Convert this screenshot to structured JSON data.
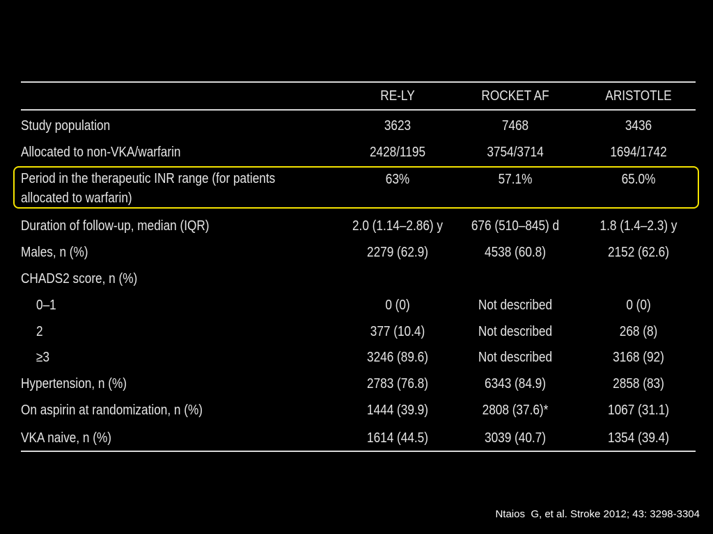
{
  "table": {
    "columns": [
      "RE-LY",
      "ROCKET AF",
      "ARISTOTLE"
    ],
    "rows": [
      {
        "label": "Study population",
        "values": [
          "3623",
          "7468",
          "3436"
        ]
      },
      {
        "label": "Allocated to non-VKA/warfarin",
        "values": [
          "2428/1195",
          "3754/3714",
          "1694/1742"
        ]
      },
      {
        "label": "Period in the therapeutic INR range (for patients allocated to warfarin)",
        "values": [
          "63%",
          "57.1%",
          "65.0%"
        ]
      },
      {
        "label": "Duration of follow-up, median (IQR)",
        "values": [
          "2.0 (1.14–2.86) y",
          "676 (510–845) d",
          "1.8 (1.4–2.3) y"
        ]
      },
      {
        "label": "Males, n (%)",
        "values": [
          "2279 (62.9)",
          "4538 (60.8)",
          "2152 (62.6)"
        ]
      },
      {
        "label": "CHADS2 score, n (%)",
        "values": [
          "",
          "",
          ""
        ]
      },
      {
        "label": "0–1",
        "values": [
          "0 (0)",
          "Not described",
          "0 (0)"
        ]
      },
      {
        "label": "2",
        "values": [
          "377 (10.4)",
          "Not described",
          "268 (8)"
        ]
      },
      {
        "label": "≥3",
        "values": [
          "3246 (89.6)",
          "Not described",
          "3168 (92)"
        ]
      },
      {
        "label": "Hypertension, n (%)",
        "values": [
          "2783 (76.8)",
          "6343 (84.9)",
          "2858 (83)"
        ]
      },
      {
        "label": "On aspirin at randomization, n (%)",
        "values": [
          "1444 (39.9)",
          "2808 (37.6)*",
          "1067 (31.1)"
        ]
      },
      {
        "label": "VKA naive, n (%)",
        "values": [
          "1614 (44.5)",
          "3039 (40.7)",
          "1354 (39.4)"
        ]
      }
    ]
  },
  "citation": "Ntaios  G, et al. Stroke 2012; 43: 3298-3304",
  "colors": {
    "background": "#000000",
    "text": "#e6e6e6",
    "highlight_border": "#f5e400"
  }
}
